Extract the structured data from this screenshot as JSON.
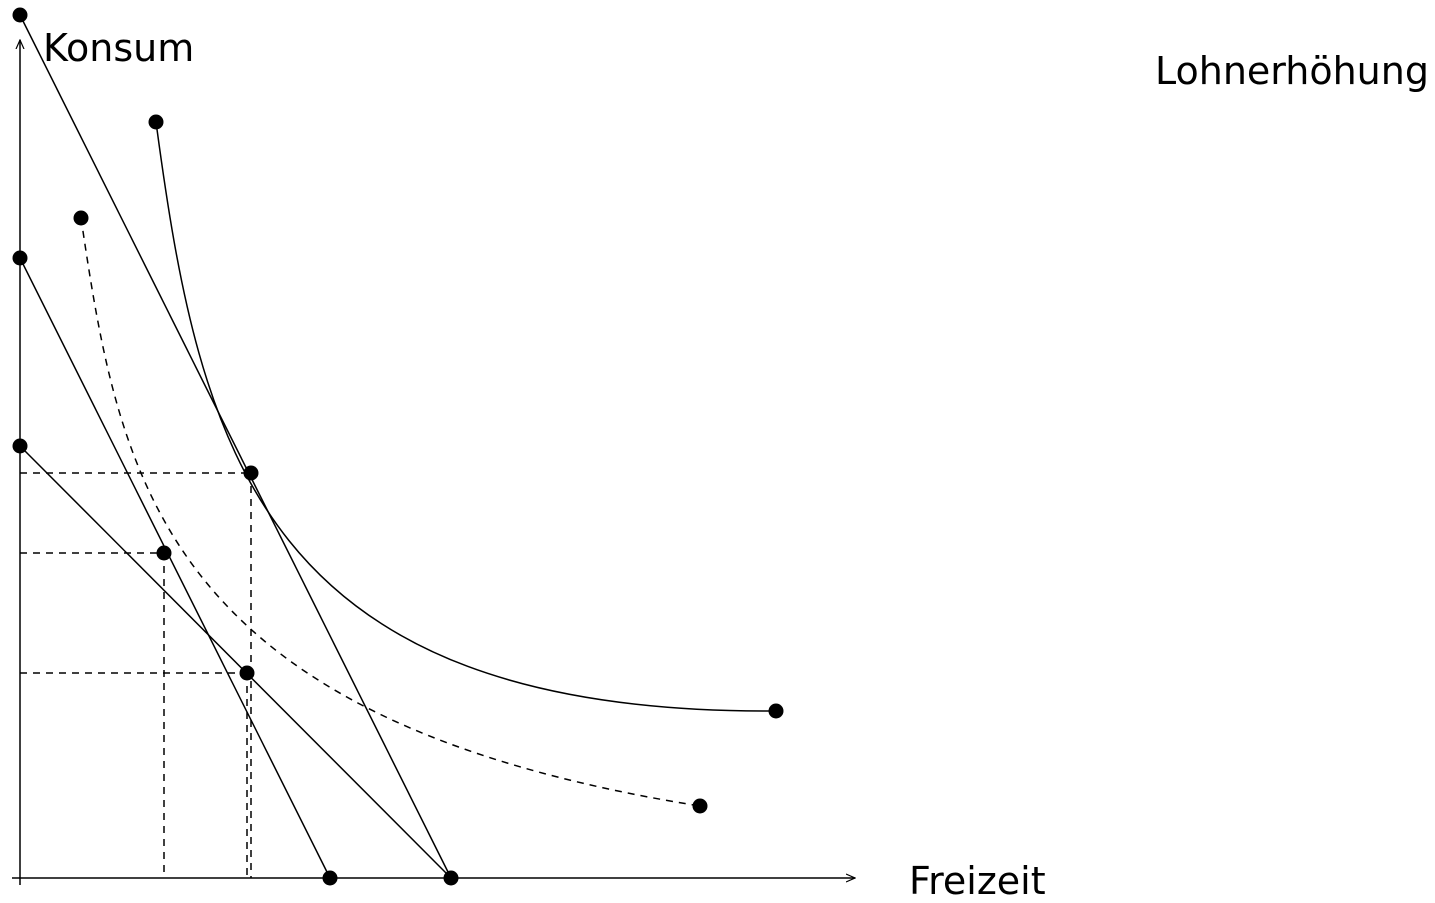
{
  "diagram": {
    "title": "Lohnerhöhung",
    "y_axis_label": "Konsum",
    "x_axis_label": "Freizeit",
    "colors": {
      "stroke": "#000000",
      "background": "#ffffff"
    }
  }
}
